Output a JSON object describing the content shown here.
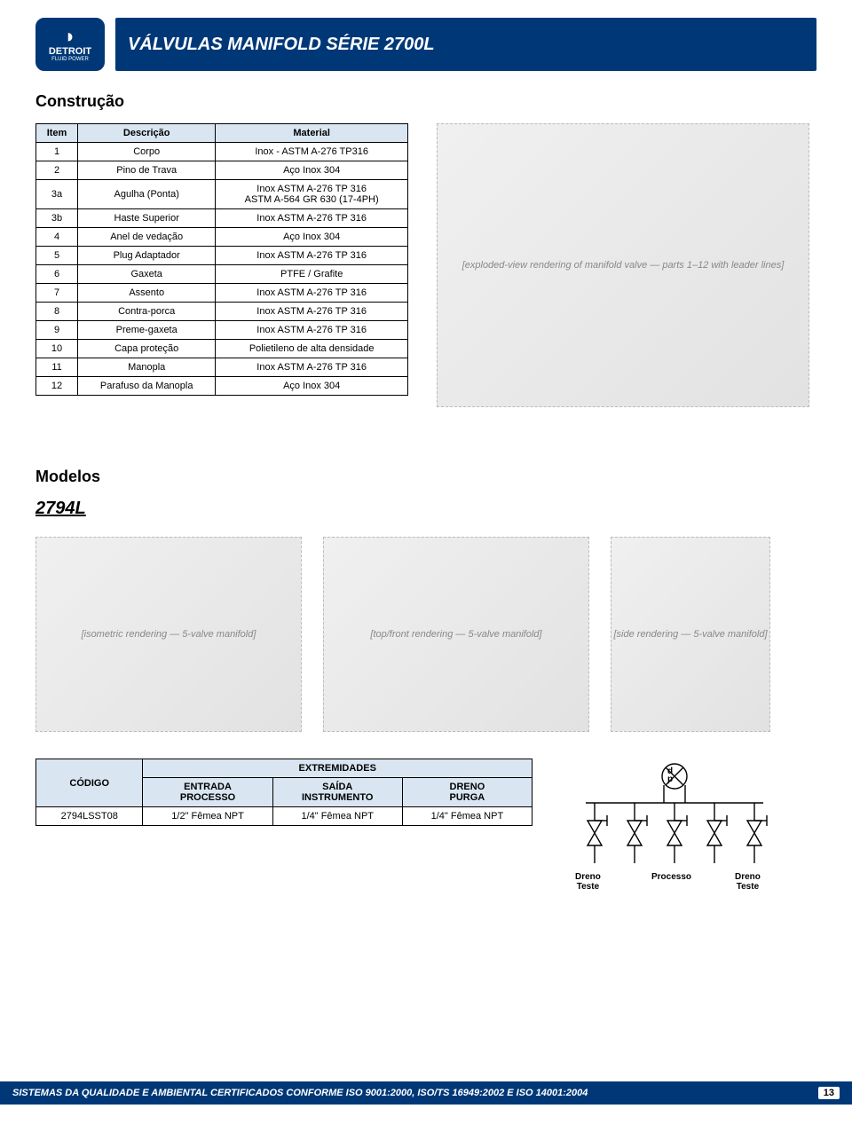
{
  "header": {
    "logo_top": "◗",
    "logo_name": "DETROIT",
    "logo_sub": "FLUID POWER",
    "title": "VÁLVULAS MANIFOLD SÉRIE 2700L"
  },
  "section_construcao": "Construção",
  "constr_table": {
    "headers": {
      "item": "Item",
      "desc": "Descrição",
      "mat": "Material"
    },
    "rows": [
      {
        "item": "1",
        "desc": "Corpo",
        "mat": "Inox - ASTM A-276 TP316"
      },
      {
        "item": "2",
        "desc": "Pino de Trava",
        "mat": "Aço Inox 304"
      },
      {
        "item": "3a",
        "desc": "Agulha (Ponta)",
        "mat": "Inox ASTM A-276 TP 316\nASTM A-564 GR 630 (17-4PH)"
      },
      {
        "item": "3b",
        "desc": "Haste Superior",
        "mat": "Inox ASTM A-276 TP 316"
      },
      {
        "item": "4",
        "desc": "Anel de vedação",
        "mat": "Aço Inox 304"
      },
      {
        "item": "5",
        "desc": "Plug Adaptador",
        "mat": "Inox ASTM A-276 TP 316"
      },
      {
        "item": "6",
        "desc": "Gaxeta",
        "mat": "PTFE / Grafite"
      },
      {
        "item": "7",
        "desc": "Assento",
        "mat": "Inox ASTM A-276 TP 316"
      },
      {
        "item": "8",
        "desc": "Contra-porca",
        "mat": "Inox ASTM A-276 TP 316"
      },
      {
        "item": "9",
        "desc": "Preme-gaxeta",
        "mat": "Inox ASTM A-276 TP 316"
      },
      {
        "item": "10",
        "desc": "Capa proteção",
        "mat": "Polietileno de alta densidade"
      },
      {
        "item": "11",
        "desc": "Manopla",
        "mat": "Inox ASTM A-276 TP 316"
      },
      {
        "item": "12",
        "desc": "Parafuso da Manopla",
        "mat": "Aço Inox 304"
      }
    ]
  },
  "img_labels": {
    "exploded": "[exploded-view rendering of manifold valve — parts 1–12 with leader lines]",
    "iso": "[isometric rendering — 5-valve manifold]",
    "top": "[top/front rendering — 5-valve manifold]",
    "side": "[side rendering — 5-valve manifold]"
  },
  "section_modelos": "Modelos",
  "model_name": "2794L",
  "codigo_table": {
    "h_codigo": "CÓDIGO",
    "h_ext": "EXTREMIDADES",
    "h_entrada": "ENTRADA\nPROCESSO",
    "h_saida": "SAÍDA\nINSTRUMENTO",
    "h_dreno": "DRENO\nPURGA",
    "row": {
      "codigo": "2794LSST08",
      "entrada": "1/2\" Fêmea NPT",
      "saida": "1/4\" Fêmea NPT",
      "dreno": "1/4\" Fêmea NPT"
    }
  },
  "schematic": {
    "dp": "d\np",
    "dreno_teste_l": "Dreno\nTeste",
    "processo": "Processo",
    "dreno_teste_r": "Dreno\nTeste",
    "stroke": "#000000",
    "fill": "#ffffff"
  },
  "footer": {
    "text": "SISTEMAS DA QUALIDADE E AMBIENTAL CERTIFICADOS CONFORME ISO 9001:2000, ISO/TS 16949:2002 E ISO 14001:2004",
    "page": "13"
  }
}
